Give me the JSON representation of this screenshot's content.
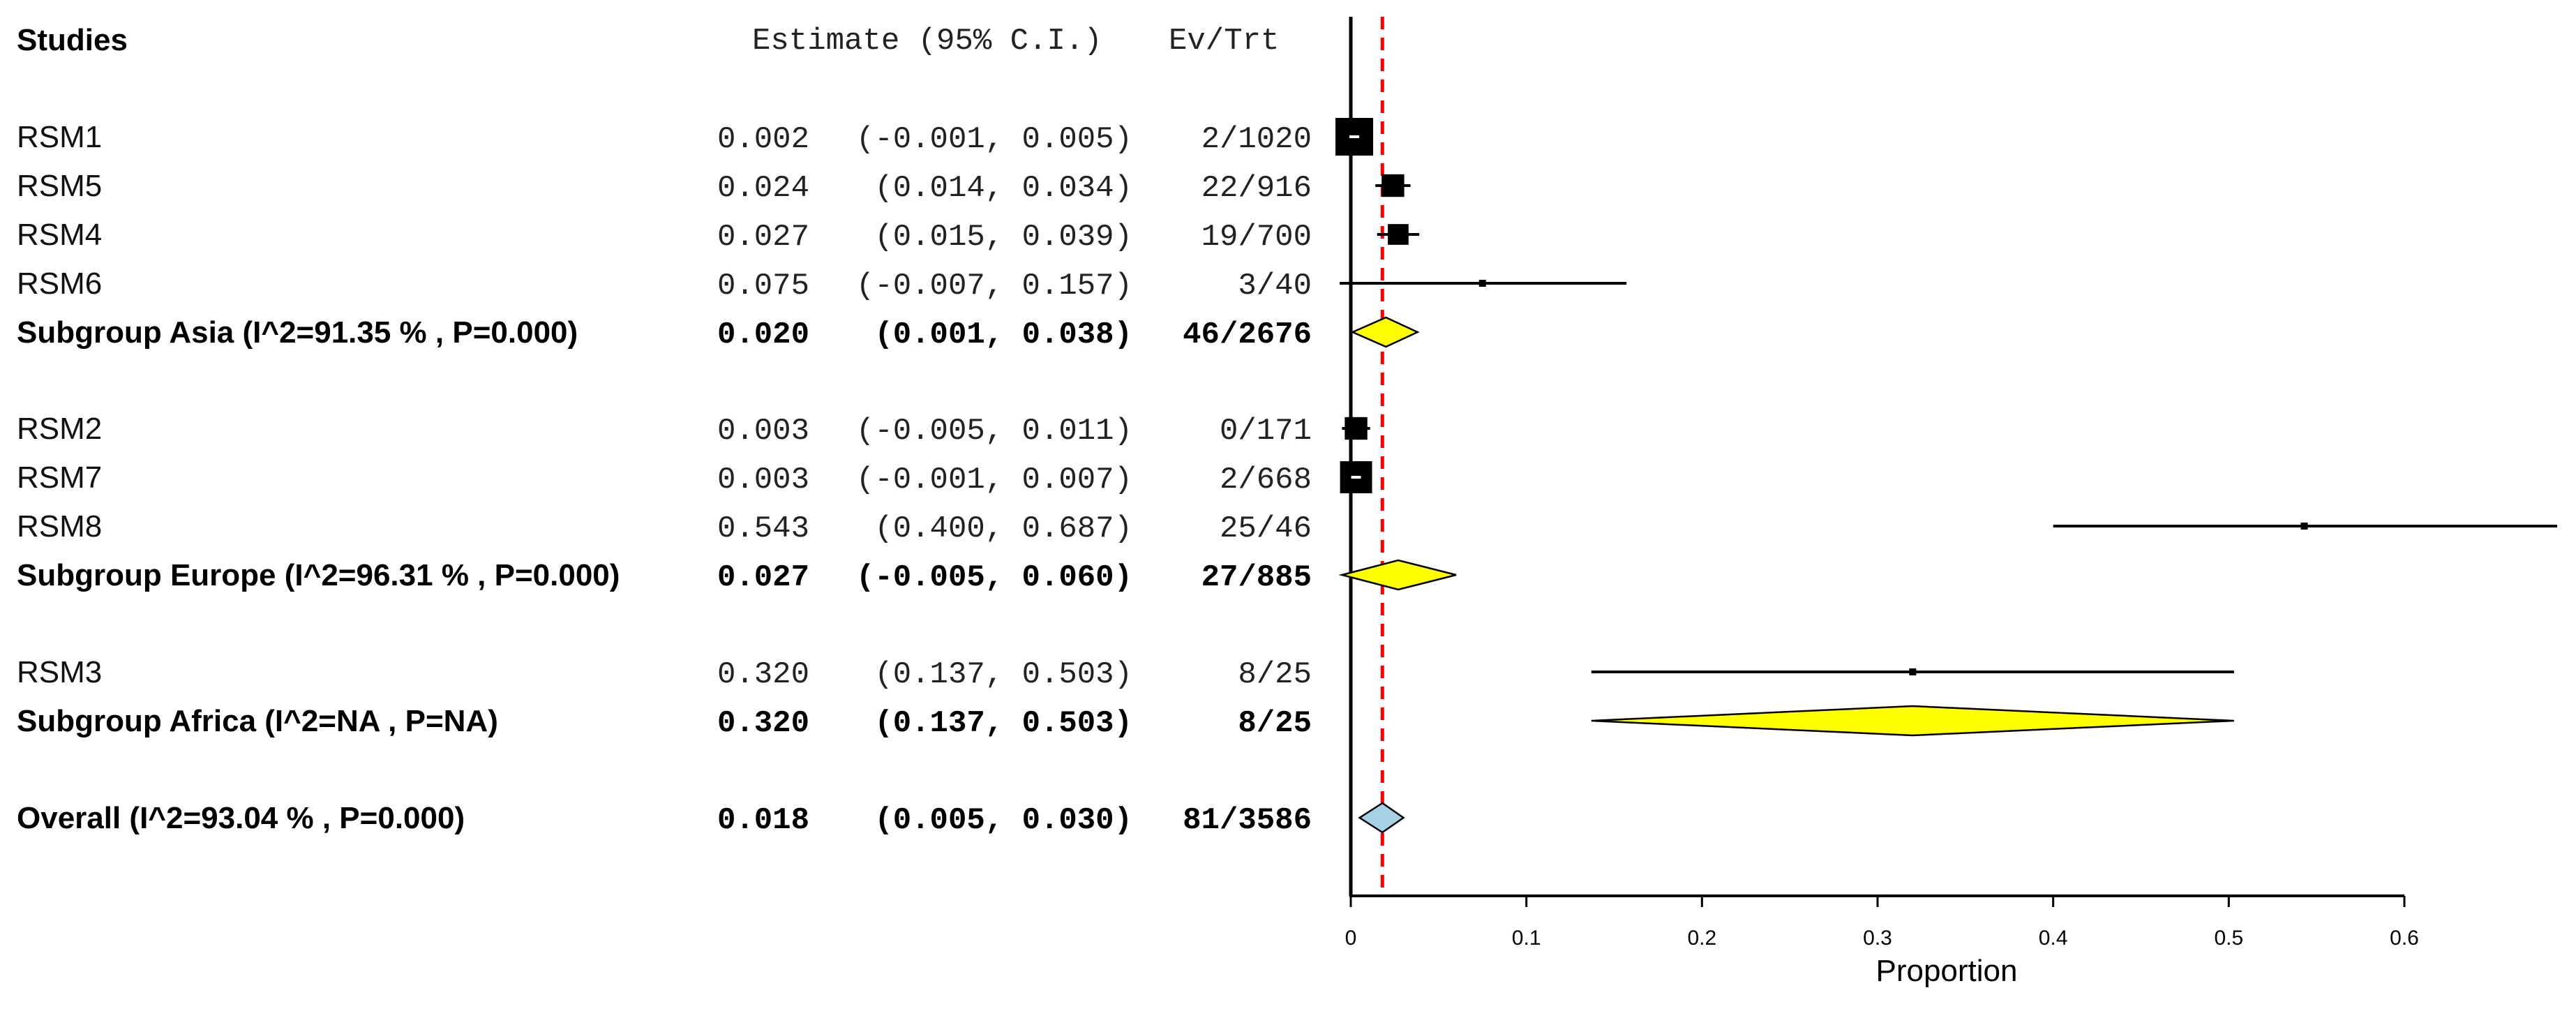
{
  "chart_data": {
    "type": "forest",
    "headers": {
      "studies": "Studies",
      "estimate": "Estimate (95% C.I.)",
      "evtrt": "Ev/Trt"
    },
    "xlabel": "Proportion",
    "xlim": [
      0,
      0.6
    ],
    "xticks": [
      "0",
      "0.1",
      "0.2",
      "0.3",
      "0.4",
      "0.5",
      "0.6"
    ],
    "reference_line": 0.018,
    "colors": {
      "subgroup_diamond": "#ffff00",
      "overall_diamond": "#a6d0e4",
      "reference_line": "#ff0000",
      "marker": "#000000"
    },
    "rows": [
      {
        "label": "RSM1",
        "est_text": "0.002",
        "ci_text": "(-0.001, 0.005)",
        "ev_text": "2/1020",
        "est": 0.002,
        "lo": -0.001,
        "hi": 0.005,
        "kind": "study",
        "weight": 1.0
      },
      {
        "label": "RSM5",
        "est_text": "0.024",
        "ci_text": "(0.014, 0.034)",
        "ev_text": "22/916",
        "est": 0.024,
        "lo": 0.014,
        "hi": 0.034,
        "kind": "study",
        "weight": 0.6
      },
      {
        "label": "RSM4",
        "est_text": "0.027",
        "ci_text": "(0.015, 0.039)",
        "ev_text": "19/700",
        "est": 0.027,
        "lo": 0.015,
        "hi": 0.039,
        "kind": "study",
        "weight": 0.55
      },
      {
        "label": "RSM6",
        "est_text": "0.075",
        "ci_text": "(-0.007, 0.157)",
        "ev_text": "3/40",
        "est": 0.075,
        "lo": -0.007,
        "hi": 0.157,
        "kind": "study",
        "weight": 0.12
      },
      {
        "label": "Subgroup Asia (I^2=91.35 % , P=0.000)",
        "est_text": "0.020",
        "ci_text": "(0.001, 0.038)",
        "ev_text": "46/2676",
        "est": 0.02,
        "lo": 0.001,
        "hi": 0.038,
        "kind": "subgroup"
      },
      {
        "label": "RSM2",
        "est_text": "0.003",
        "ci_text": "(-0.005, 0.011)",
        "ev_text": "0/171",
        "est": 0.003,
        "lo": -0.005,
        "hi": 0.011,
        "kind": "study",
        "weight": 0.6
      },
      {
        "label": "RSM7",
        "est_text": "0.003",
        "ci_text": "(-0.001, 0.007)",
        "ev_text": "2/668",
        "est": 0.003,
        "lo": -0.001,
        "hi": 0.007,
        "kind": "study",
        "weight": 0.85
      },
      {
        "label": "RSM8",
        "est_text": "0.543",
        "ci_text": "(0.400, 0.687)",
        "ev_text": "25/46",
        "est": 0.543,
        "lo": 0.4,
        "hi": 0.687,
        "kind": "study",
        "weight": 0.1
      },
      {
        "label": "Subgroup Europe (I^2=96.31 % , P=0.000)",
        "est_text": "0.027",
        "ci_text": "(-0.005, 0.060)",
        "ev_text": "27/885",
        "est": 0.027,
        "lo": -0.005,
        "hi": 0.06,
        "kind": "subgroup"
      },
      {
        "label": "RSM3",
        "est_text": "0.320",
        "ci_text": "(0.137, 0.503)",
        "ev_text": "8/25",
        "est": 0.32,
        "lo": 0.137,
        "hi": 0.503,
        "kind": "study",
        "weight": 0.1
      },
      {
        "label": "Subgroup Africa (I^2=NA , P=NA)",
        "est_text": "0.320",
        "ci_text": "(0.137, 0.503)",
        "ev_text": "8/25",
        "est": 0.32,
        "lo": 0.137,
        "hi": 0.503,
        "kind": "subgroup"
      },
      {
        "label": "Overall (I^2=93.04 % , P=0.000)",
        "est_text": "0.018",
        "ci_text": "(0.005, 0.030)",
        "ev_text": "81/3586",
        "est": 0.018,
        "lo": 0.005,
        "hi": 0.03,
        "kind": "overall"
      }
    ]
  }
}
